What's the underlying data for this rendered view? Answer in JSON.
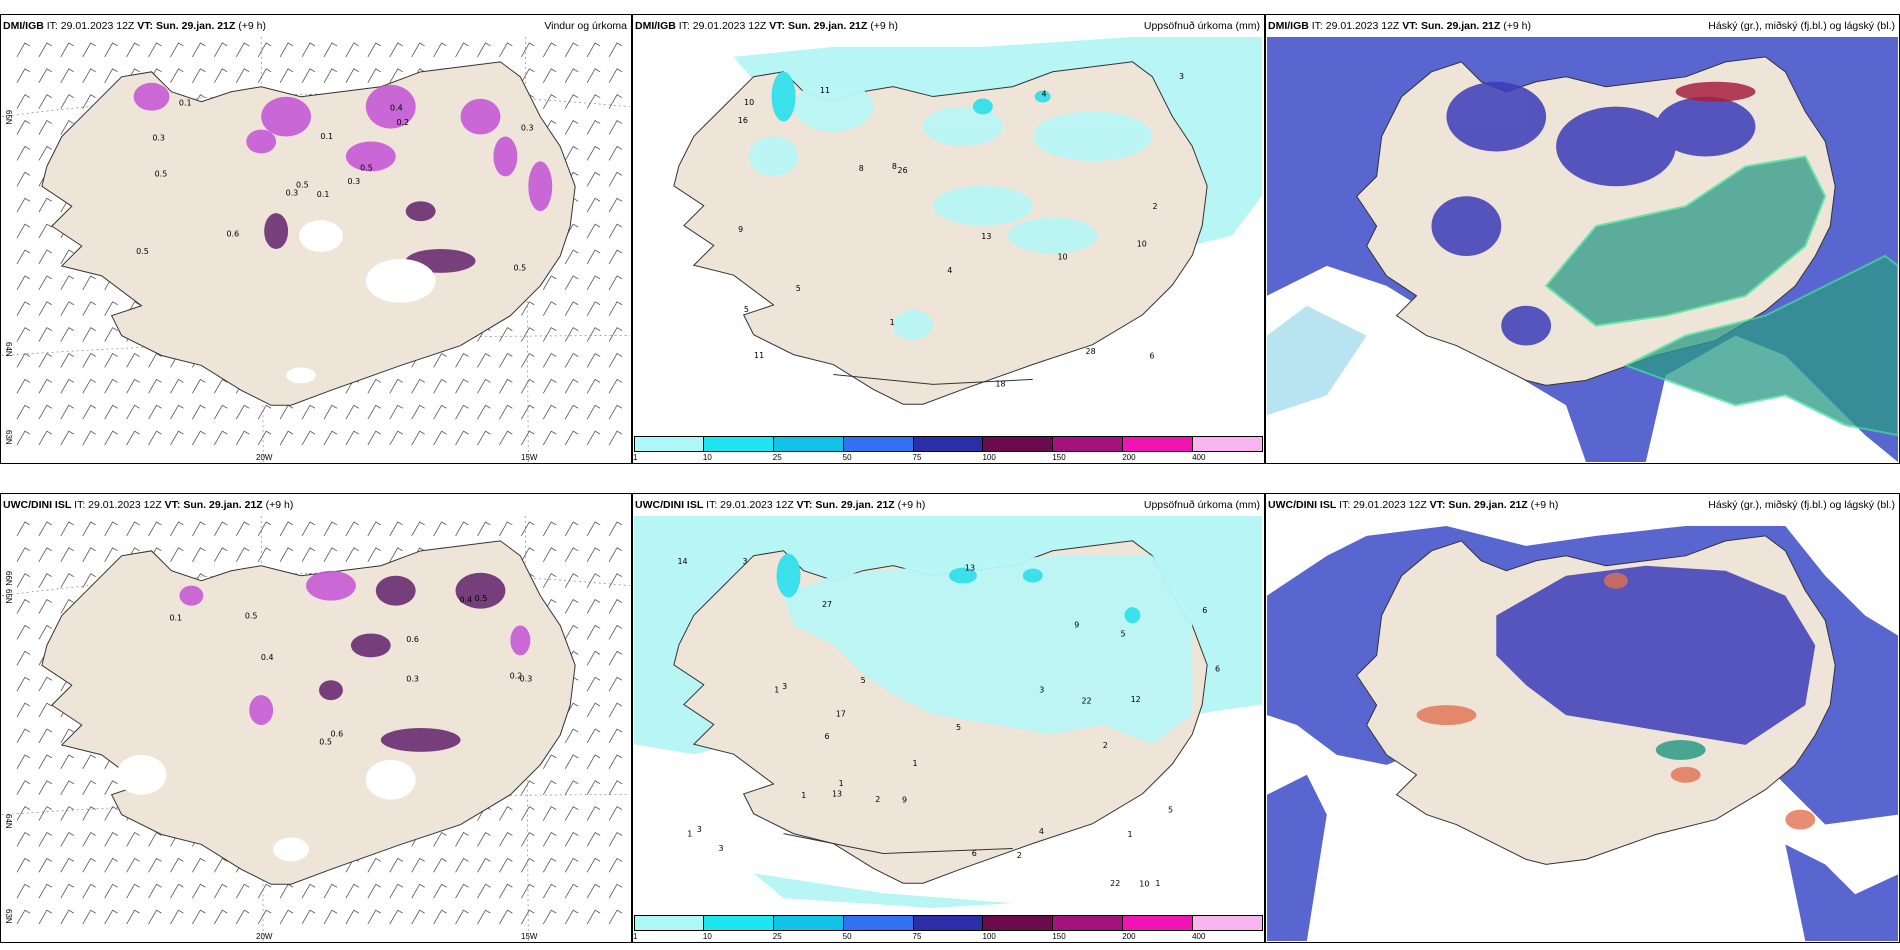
{
  "rows": [
    {
      "model": "DMI/IGB",
      "it": "IT: 29.01.2023 12Z",
      "vt_label": "VT:",
      "vt": "Sun. 29.jan. 21Z",
      "lead": "(+9 h)",
      "titles": [
        "Vindur og úrkoma",
        "Uppsöfnuð úrkoma (mm)",
        "Háský (gr.), miðský (fj.bl.) og lágský (bl.)"
      ],
      "axis_lat": [
        "65N",
        "64N",
        "63N"
      ],
      "axis_lon": [
        "20W",
        "15W"
      ],
      "precip_labels": [
        "10",
        "10",
        "11",
        "11",
        "26",
        "28",
        "5",
        "4",
        "8",
        "18",
        "16",
        "9",
        "10",
        "6",
        "1",
        "2",
        "4",
        "13",
        "8",
        "5",
        "3",
        "0.1",
        "0.3",
        "0.5",
        "0.5",
        "0.5",
        "0.6",
        "0.4",
        "0.1",
        "0.2",
        "0.3",
        "0.1",
        "0.5",
        "0.5",
        "0.3",
        "0.3"
      ]
    },
    {
      "model": "UWC/DINI ISL",
      "it": "IT: 29.01.2023 12Z",
      "vt_label": "VT:",
      "vt": "Sun. 29.jan. 21Z",
      "lead": "(+9 h)",
      "titles": [
        "",
        "Uppsöfnuð úrkoma (mm)",
        "Háský (gr.), miðský (fj.bl.) og lágský (bl.)"
      ],
      "axis_lat": [
        "66N",
        "65N",
        "64N",
        "63N"
      ],
      "axis_lon": [
        "20W",
        "15W"
      ],
      "precip_labels": [
        "1",
        "1",
        "3",
        "2",
        "1",
        "27",
        "9",
        "6",
        "13",
        "22",
        "12",
        "13",
        "14",
        "22",
        "17",
        "4",
        "5",
        "6",
        "6",
        "5",
        "10",
        "3",
        "2",
        "1",
        "1",
        "3",
        "6",
        "3",
        "5",
        "1",
        "1",
        "2",
        "3",
        "5",
        "9",
        "0.1",
        "0.5",
        "0.6",
        "0.6",
        "0.4",
        "0.5",
        "0.3",
        "0.4",
        "0.5",
        "0.3",
        "0.2"
      ]
    }
  ],
  "colorbar": {
    "ticks": [
      "1",
      "10",
      "25",
      "50",
      "75",
      "100",
      "150",
      "200",
      "400"
    ],
    "colors": [
      "#aef7f7",
      "#1ee6f0",
      "#11c3e9",
      "#3272f2",
      "#2a2fa8",
      "#6b0a4d",
      "#a4127c",
      "#f015b3",
      "#f8b4ee"
    ]
  },
  "colors": {
    "land": "#efe4d8",
    "precip_light": "#b8f6f6",
    "precip_cyan": "#3ae0ea",
    "high_cloud": "#5a66d0",
    "high_cloud_dark": "#3b3cb8",
    "mid_cloud": "#2a9a86",
    "low_cloud": "#9ad8ec",
    "purple_precip": "#c55ad6",
    "dark_purple": "#6a2e73"
  }
}
